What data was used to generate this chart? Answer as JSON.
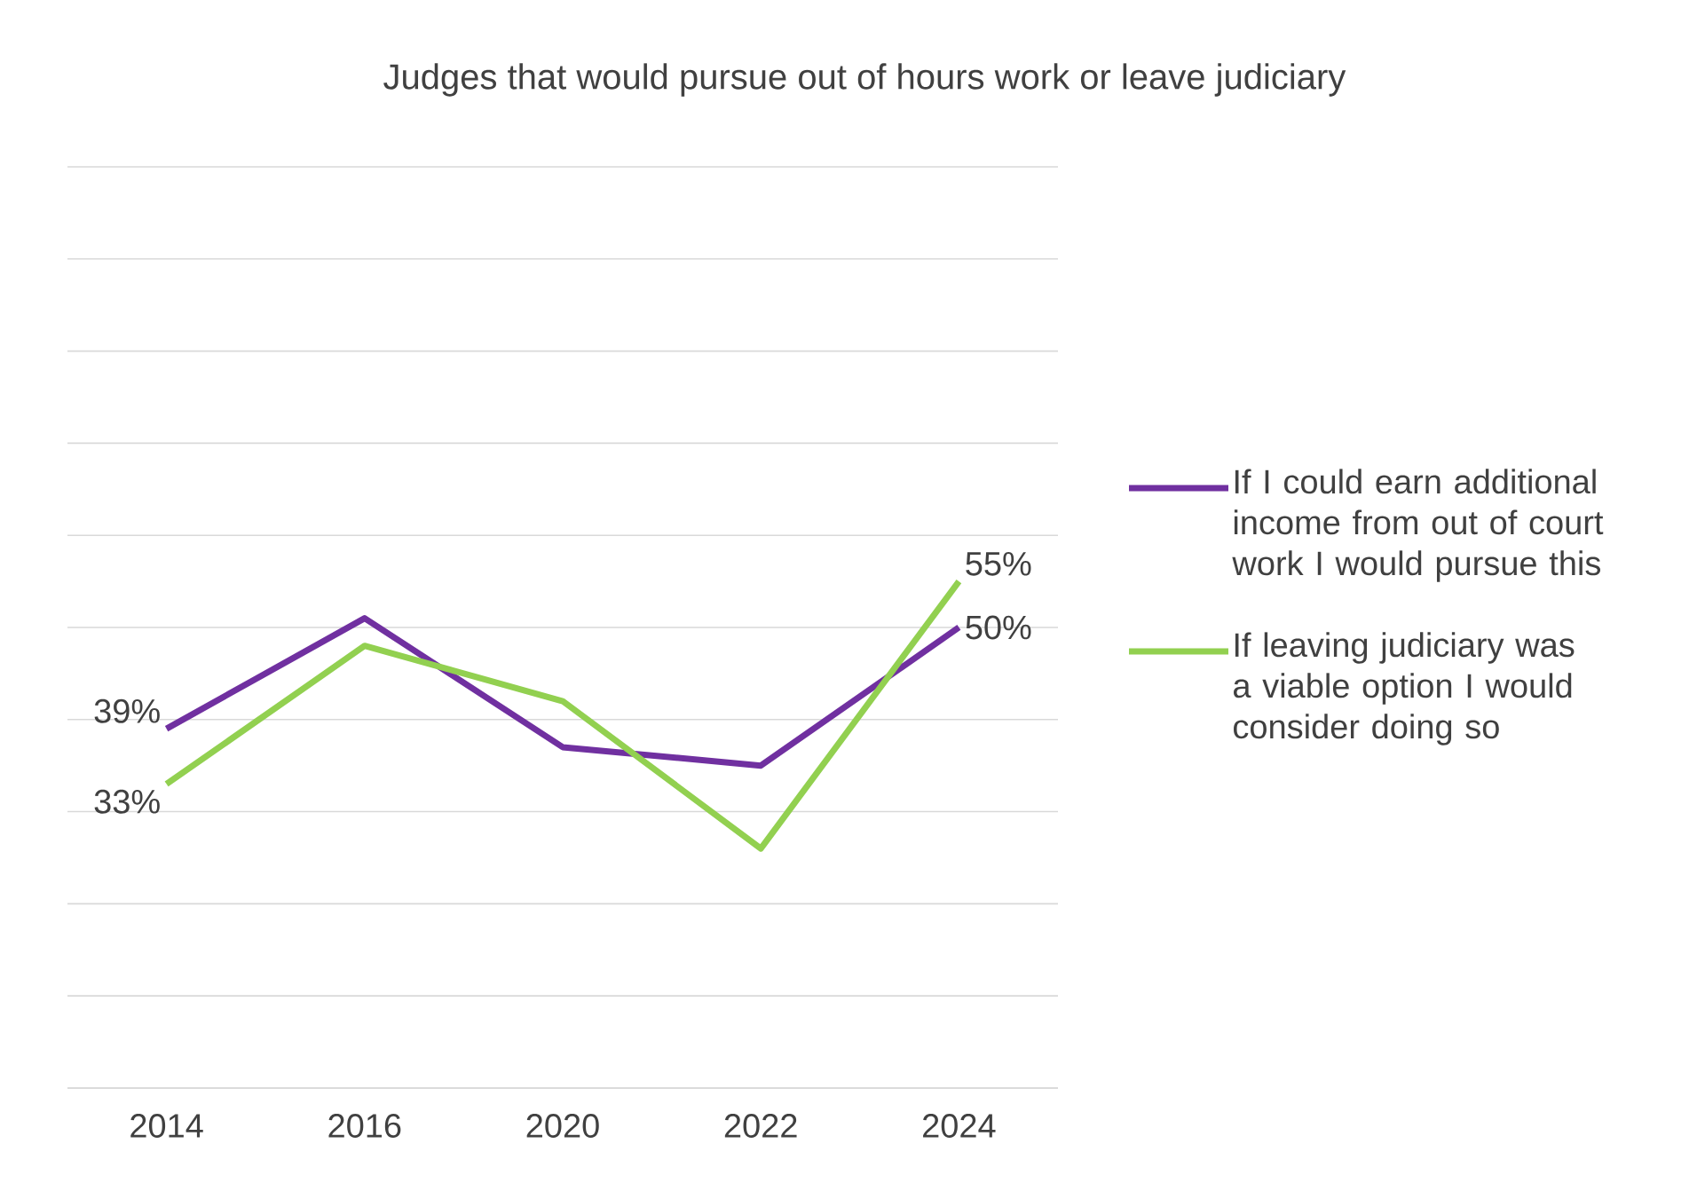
{
  "chart_data": {
    "type": "line",
    "title": "Judges that would pursue out of hours work or leave judiciary",
    "categories": [
      "2014",
      "2016",
      "2020",
      "2022",
      "2024"
    ],
    "series": [
      {
        "name": "If I could earn additional income from out of court work I would pursue this",
        "color": "#7030a0",
        "values": [
          39,
          51,
          37,
          35,
          50
        ],
        "value_labels": [
          "39%",
          null,
          null,
          null,
          "50%"
        ]
      },
      {
        "name": "If leaving judiciary was a viable option I would consider doing so",
        "color": "#92d050",
        "values": [
          33,
          48,
          42,
          26,
          55
        ],
        "value_labels": [
          "33%",
          null,
          null,
          null,
          "55%"
        ]
      }
    ],
    "ylim": [
      0,
      100
    ],
    "yticks": [
      {
        "value": 0,
        "label": null
      },
      {
        "value": 10,
        "label": null
      },
      {
        "value": 20,
        "label": null
      },
      {
        "value": 30,
        "label": null
      },
      {
        "value": 40,
        "label": null
      },
      {
        "value": 50,
        "label": null
      },
      {
        "value": 60,
        "label": null
      },
      {
        "value": 70,
        "label": null
      },
      {
        "value": 80,
        "label": null
      },
      {
        "value": 90,
        "label": null
      },
      {
        "value": 100,
        "label": null
      }
    ],
    "grid": "y",
    "tick_labels": "x",
    "legend": "right",
    "marker": "none",
    "line_style": "solid"
  }
}
